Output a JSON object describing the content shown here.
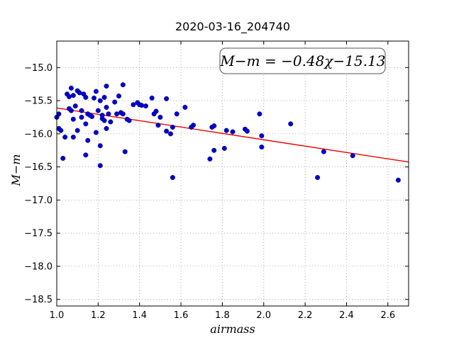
{
  "chart_data": {
    "type": "scatter",
    "title": "2020-03-16_204740",
    "xlabel": "airmass",
    "ylabel": "M−m",
    "xlim": [
      1.0,
      2.7
    ],
    "ylim": [
      -18.6,
      -14.6
    ],
    "x_ticks": [
      "1.0",
      "1.2",
      "1.4",
      "1.6",
      "1.8",
      "2.0",
      "2.2",
      "2.4",
      "2.6"
    ],
    "x_tick_values": [
      1.0,
      1.2,
      1.4,
      1.6,
      1.8,
      2.0,
      2.2,
      2.4,
      2.6
    ],
    "y_ticks": [
      "−15.0",
      "−15.5",
      "−16.0",
      "−16.5",
      "−17.0",
      "−17.5",
      "−18.0",
      "−18.5"
    ],
    "y_tick_values": [
      -15.0,
      -15.5,
      -16.0,
      -16.5,
      -17.0,
      -17.5,
      -18.0,
      -18.5
    ],
    "grid": true,
    "annotation": "M−m = −0.48χ−15.13",
    "fit_line": {
      "slope": -0.48,
      "intercept": -15.13,
      "color": "#ee0000"
    },
    "marker_color": "#0000cc",
    "points": [
      [
        1.0,
        -15.75
      ],
      [
        1.01,
        -15.7
      ],
      [
        1.01,
        -15.92
      ],
      [
        1.02,
        -15.95
      ],
      [
        1.03,
        -16.37
      ],
      [
        1.04,
        -16.05
      ],
      [
        1.05,
        -15.4
      ],
      [
        1.06,
        -15.44
      ],
      [
        1.06,
        -15.62
      ],
      [
        1.07,
        -15.65
      ],
      [
        1.07,
        -15.31
      ],
      [
        1.08,
        -15.42
      ],
      [
        1.08,
        -15.78
      ],
      [
        1.08,
        -16.05
      ],
      [
        1.09,
        -15.58
      ],
      [
        1.1,
        -15.35
      ],
      [
        1.1,
        -15.95
      ],
      [
        1.11,
        -15.38
      ],
      [
        1.12,
        -15.65
      ],
      [
        1.12,
        -15.75
      ],
      [
        1.13,
        -15.4
      ],
      [
        1.14,
        -15.45
      ],
      [
        1.14,
        -15.85
      ],
      [
        1.14,
        -16.32
      ],
      [
        1.15,
        -15.7
      ],
      [
        1.15,
        -16.1
      ],
      [
        1.16,
        -15.72
      ],
      [
        1.17,
        -15.74
      ],
      [
        1.18,
        -15.46
      ],
      [
        1.19,
        -15.36
      ],
      [
        1.19,
        -15.98
      ],
      [
        1.2,
        -15.65
      ],
      [
        1.21,
        -15.5
      ],
      [
        1.21,
        -16.18
      ],
      [
        1.21,
        -16.48
      ],
      [
        1.22,
        -15.72
      ],
      [
        1.22,
        -15.77
      ],
      [
        1.23,
        -15.45
      ],
      [
        1.23,
        -15.8
      ],
      [
        1.24,
        -15.28
      ],
      [
        1.24,
        -15.6
      ],
      [
        1.24,
        -15.92
      ],
      [
        1.25,
        -15.7
      ],
      [
        1.26,
        -15.82
      ],
      [
        1.28,
        -15.52
      ],
      [
        1.29,
        -15.7
      ],
      [
        1.3,
        -15.43
      ],
      [
        1.31,
        -15.68
      ],
      [
        1.32,
        -15.26
      ],
      [
        1.32,
        -15.7
      ],
      [
        1.33,
        -16.27
      ],
      [
        1.34,
        -15.78
      ],
      [
        1.35,
        -15.8
      ],
      [
        1.37,
        -15.56
      ],
      [
        1.39,
        -15.53
      ],
      [
        1.4,
        -15.56
      ],
      [
        1.41,
        -15.57
      ],
      [
        1.43,
        -15.58
      ],
      [
        1.46,
        -15.46
      ],
      [
        1.47,
        -15.7
      ],
      [
        1.48,
        -15.66
      ],
      [
        1.49,
        -15.87
      ],
      [
        1.5,
        -15.75
      ],
      [
        1.53,
        -15.47
      ],
      [
        1.53,
        -15.96
      ],
      [
        1.55,
        -16.0
      ],
      [
        1.56,
        -15.9
      ],
      [
        1.56,
        -16.66
      ],
      [
        1.58,
        -15.7
      ],
      [
        1.62,
        -15.6
      ],
      [
        1.65,
        -15.9
      ],
      [
        1.66,
        -15.87
      ],
      [
        1.74,
        -16.38
      ],
      [
        1.75,
        -15.9
      ],
      [
        1.76,
        -16.25
      ],
      [
        1.76,
        -15.88
      ],
      [
        1.81,
        -16.22
      ],
      [
        1.82,
        -15.95
      ],
      [
        1.85,
        -15.97
      ],
      [
        1.91,
        -15.93
      ],
      [
        1.92,
        -15.96
      ],
      [
        1.98,
        -15.7
      ],
      [
        1.99,
        -16.03
      ],
      [
        1.99,
        -16.2
      ],
      [
        2.13,
        -15.85
      ],
      [
        2.26,
        -16.66
      ],
      [
        2.29,
        -16.27
      ],
      [
        2.43,
        -16.33
      ],
      [
        2.65,
        -16.7
      ]
    ]
  }
}
